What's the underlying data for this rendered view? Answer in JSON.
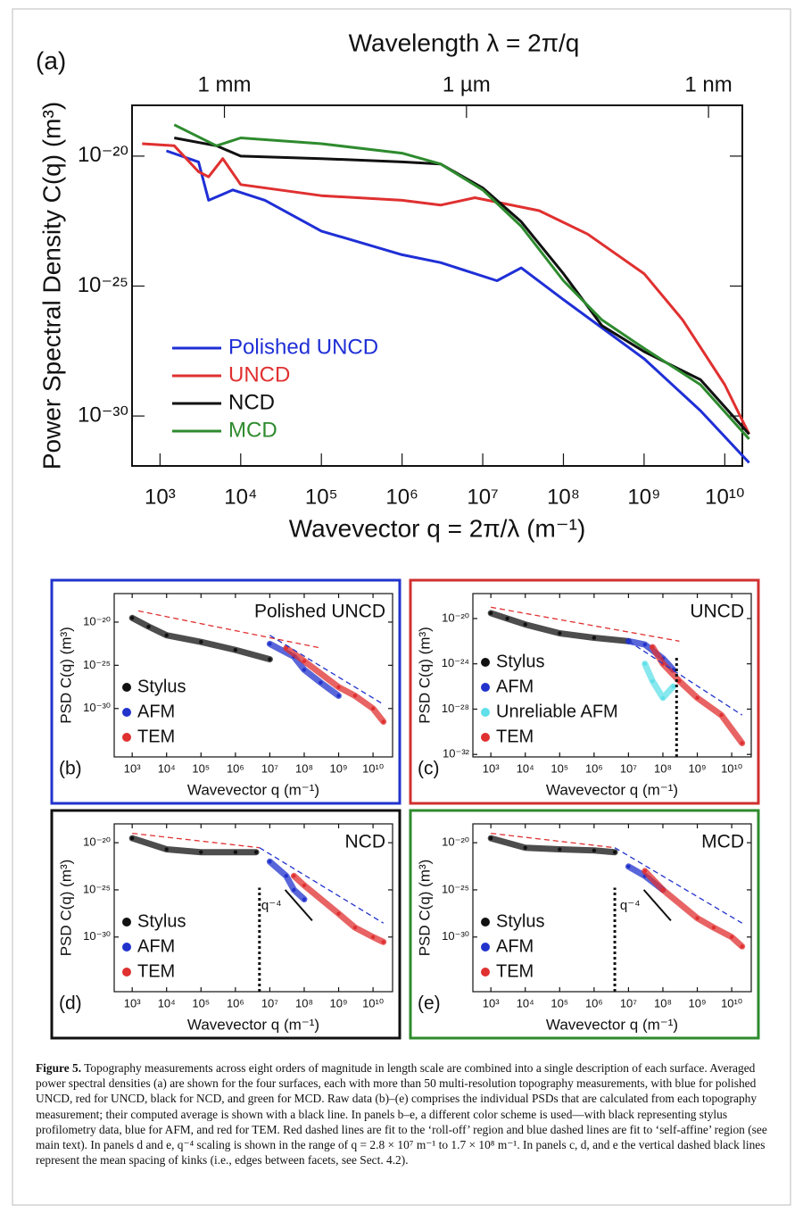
{
  "chart_data": [
    {
      "type": "line",
      "panel_label": "(a)",
      "top_axis_label": "Wavelength λ = 2π/q",
      "top_xticks": [
        {
          "value": 6283,
          "label": "1 mm"
        },
        {
          "value": 6283000,
          "label": "1 µm"
        },
        {
          "value": 6283000000,
          "label": "1 nm"
        }
      ],
      "ylabel": "Power Spectral Density C(q) (m³)",
      "xlabel": "Wavevector q = 2π/λ (m⁻¹)",
      "log_x": true,
      "log_y": true,
      "xlim": [
        450,
        16500000000
      ],
      "ylim": [
        1.2e-32,
        9e-19
      ],
      "xticks": [
        {
          "value": 1000,
          "label": "10³"
        },
        {
          "value": 10000,
          "label": "10⁴"
        },
        {
          "value": 100000,
          "label": "10⁵"
        },
        {
          "value": 1000000,
          "label": "10⁶"
        },
        {
          "value": 10000000,
          "label": "10⁷"
        },
        {
          "value": 100000000,
          "label": "10⁸"
        },
        {
          "value": 1000000000,
          "label": "10⁹"
        },
        {
          "value": 10000000000,
          "label": "10¹⁰"
        }
      ],
      "yticks": [
        {
          "value": 1e-20,
          "label": "10⁻²⁰"
        },
        {
          "value": 1e-25,
          "label": "10⁻²⁵"
        },
        {
          "value": 1e-30,
          "label": "10⁻³⁰"
        }
      ],
      "series": [
        {
          "name": "Polished UNCD",
          "color": "#1f2fd6",
          "x": [
            1200,
            3000,
            4000,
            8000,
            20000,
            100000,
            1000000,
            3000000,
            15000000,
            30000000,
            100000000,
            1000000000,
            5000000000,
            20000000000
          ],
          "values": [
            1.6e-20,
            6e-21,
            2e-22,
            5e-22,
            2e-22,
            1.3e-23,
            1.6e-24,
            8e-25,
            1.6e-25,
            5e-25,
            3e-26,
            1.6e-28,
            1.6e-30,
            1.6e-32
          ]
        },
        {
          "name": "UNCD",
          "color": "#e03030",
          "x": [
            600,
            1500,
            3000,
            4000,
            6000,
            10000,
            100000,
            1000000,
            3000000,
            8000000,
            50000000,
            200000000,
            1000000000,
            3000000000,
            10000000000,
            20000000000
          ],
          "values": [
            3e-20,
            2.5e-20,
            2.5e-21,
            1.6e-21,
            8e-21,
            8e-22,
            3e-22,
            2e-22,
            1.3e-22,
            2.5e-22,
            8e-23,
            1e-23,
            3e-25,
            5e-27,
            1.6e-29,
            2e-31
          ]
        },
        {
          "name": "NCD",
          "color": "#111111",
          "x": [
            1500,
            5000,
            10000,
            100000,
            1000000,
            3000000,
            10000000,
            30000000,
            100000000,
            300000000,
            1000000000,
            5000000000,
            20000000000
          ],
          "values": [
            5e-20,
            2.5e-20,
            1e-20,
            8e-21,
            6e-21,
            5e-21,
            6e-22,
            3e-23,
            3e-25,
            3e-27,
            3e-28,
            2.5e-29,
            2e-31
          ]
        },
        {
          "name": "MCD",
          "color": "#2e8b2e",
          "x": [
            1500,
            5000,
            10000,
            100000,
            1000000,
            3000000,
            10000000,
            30000000,
            100000000,
            300000000,
            1000000000,
            5000000000,
            20000000000
          ],
          "values": [
            1.6e-19,
            2.5e-20,
            5e-20,
            3e-20,
            1.3e-20,
            5e-21,
            5e-22,
            2e-23,
            1.6e-25,
            5e-27,
            4e-28,
            1.6e-29,
            1.3e-31
          ]
        }
      ]
    },
    {
      "type": "scatter",
      "panel_label": "(b)",
      "title": "Polished UNCD",
      "frame_color": "#2233cc",
      "ylabel": "PSD C(q) (m³)",
      "xlabel": "Wavevector q (m⁻¹)",
      "log_x": true,
      "log_y": true,
      "xlim": [
        300,
        37000000000
      ],
      "ylim": [
        2.5e-36,
        2e-17
      ],
      "xticks": [
        {
          "value": 1000,
          "label": "10³"
        },
        {
          "value": 10000,
          "label": "10⁴"
        },
        {
          "value": 100000,
          "label": "10⁵"
        },
        {
          "value": 1000000,
          "label": "10⁶"
        },
        {
          "value": 10000000,
          "label": "10⁷"
        },
        {
          "value": 100000000,
          "label": "10⁸"
        },
        {
          "value": 1000000000,
          "label": "10⁹"
        },
        {
          "value": 10000000000,
          "label": "10¹⁰"
        }
      ],
      "yticks": [
        {
          "value": 1e-20,
          "label": "10⁻²⁰"
        },
        {
          "value": 1e-25,
          "label": "10⁻²⁵"
        },
        {
          "value": 1e-30,
          "label": "10⁻³⁰"
        }
      ],
      "series": [
        {
          "name": "Stylus",
          "color": "#111111",
          "x": [
            1000,
            3000,
            10000,
            100000,
            1000000,
            10000000
          ],
          "values": [
            3e-20,
            3e-21,
            3e-22,
            5e-23,
            6e-24,
            5e-25
          ]
        },
        {
          "name": "AFM",
          "color": "#2233cc",
          "x": [
            10000000,
            50000000,
            100000000,
            300000000,
            1000000000
          ],
          "values": [
            3e-23,
            1e-24,
            3e-26,
            1e-27,
            3e-29
          ]
        },
        {
          "name": "TEM",
          "color": "#e03030",
          "x": [
            30000000,
            100000000,
            1000000000,
            3000000000,
            10000000000,
            20000000000
          ],
          "values": [
            1e-23,
            3e-25,
            3e-28,
            3e-29,
            1e-30,
            3e-32
          ]
        },
        {
          "color": "#e03030",
          "dash": "6,4",
          "x": [
            1500,
            300000000
          ],
          "values": [
            2e-19,
            1e-23
          ]
        },
        {
          "color": "#2233cc",
          "dash": "6,4",
          "x": [
            10000000,
            20000000000
          ],
          "values": [
            3e-22,
            3e-30
          ]
        }
      ]
    },
    {
      "type": "scatter",
      "panel_label": "(c)",
      "title": "UNCD",
      "frame_color": "#d03030",
      "ylabel": "PSD C(q) (m³)",
      "xlabel": "Wavevector q (m⁻¹)",
      "log_x": true,
      "log_y": true,
      "xlim": [
        300,
        37000000000
      ],
      "ylim": [
        6e-33,
        1.6e-18
      ],
      "xticks": [
        {
          "value": 1000,
          "label": "10³"
        },
        {
          "value": 10000,
          "label": "10⁴"
        },
        {
          "value": 100000,
          "label": "10⁵"
        },
        {
          "value": 1000000,
          "label": "10⁶"
        },
        {
          "value": 10000000,
          "label": "10⁷"
        },
        {
          "value": 100000000,
          "label": "10⁸"
        },
        {
          "value": 1000000000,
          "label": "10⁹"
        },
        {
          "value": 10000000000,
          "label": "10¹⁰"
        }
      ],
      "yticks": [
        {
          "value": 1e-20,
          "label": "10⁻²⁰"
        },
        {
          "value": 1e-24,
          "label": "10⁻²⁴"
        },
        {
          "value": 1e-28,
          "label": "10⁻²⁸"
        },
        {
          "value": 1e-32,
          "label": "10⁻³²"
        }
      ],
      "vline": 250000000,
      "series": [
        {
          "name": "Stylus",
          "color": "#111111",
          "x": [
            1000,
            3000,
            10000,
            100000,
            1000000,
            10000000
          ],
          "values": [
            3e-20,
            1e-20,
            3e-21,
            5e-22,
            2e-22,
            1e-22
          ]
        },
        {
          "name": "AFM",
          "color": "#2233cc",
          "x": [
            10000000,
            30000000,
            100000000,
            200000000
          ],
          "values": [
            1e-22,
            5e-23,
            3e-24,
            3e-25
          ]
        },
        {
          "name": "Unreliable AFM",
          "color": "#5fe0e8",
          "x": [
            30000000,
            50000000,
            100000000,
            200000000
          ],
          "values": [
            1e-24,
            3e-26,
            1e-27,
            1e-26
          ]
        },
        {
          "name": "TEM",
          "color": "#e03030",
          "x": [
            50000000,
            100000000,
            300000000,
            1000000000,
            5000000000,
            20000000000
          ],
          "values": [
            3e-23,
            1e-24,
            3e-26,
            1e-27,
            3e-29,
            1e-31
          ]
        },
        {
          "color": "#e03030",
          "dash": "6,4",
          "x": [
            1000,
            300000000
          ],
          "values": [
            1e-19,
            1e-22
          ]
        },
        {
          "color": "#2233cc",
          "dash": "6,4",
          "x": [
            10000000,
            20000000000
          ],
          "values": [
            1e-22,
            3e-29
          ]
        }
      ]
    },
    {
      "type": "scatter",
      "panel_label": "(d)",
      "title": "NCD",
      "frame_color": "#111111",
      "ylabel": "PSD C(q) (m³)",
      "xlabel": "Wavevector q (m⁻¹)",
      "log_x": true,
      "log_y": true,
      "xlim": [
        300,
        37000000000
      ],
      "ylim": [
        1.6e-36,
        1e-18
      ],
      "xticks": [
        {
          "value": 1000,
          "label": "10³"
        },
        {
          "value": 10000,
          "label": "10⁴"
        },
        {
          "value": 100000,
          "label": "10⁵"
        },
        {
          "value": 1000000,
          "label": "10⁶"
        },
        {
          "value": 10000000,
          "label": "10⁷"
        },
        {
          "value": 100000000,
          "label": "10⁸"
        },
        {
          "value": 1000000000,
          "label": "10⁹"
        },
        {
          "value": 10000000000,
          "label": "10¹⁰"
        }
      ],
      "yticks": [
        {
          "value": 1e-20,
          "label": "10⁻²⁰"
        },
        {
          "value": 1e-25,
          "label": "10⁻²⁵"
        },
        {
          "value": 1e-30,
          "label": "10⁻³⁰"
        }
      ],
      "vline": 5000000,
      "slope_label": "q⁻⁴",
      "series": [
        {
          "name": "Stylus",
          "color": "#111111",
          "x": [
            1000,
            10000,
            100000,
            1000000,
            4000000
          ],
          "values": [
            3e-20,
            2e-21,
            1e-21,
            1e-21,
            1e-21
          ]
        },
        {
          "name": "AFM",
          "color": "#2233cc",
          "x": [
            10000000,
            30000000,
            50000000,
            100000000
          ],
          "values": [
            1e-22,
            3e-24,
            1e-25,
            1e-26
          ]
        },
        {
          "name": "TEM",
          "color": "#e03030",
          "x": [
            50000000,
            100000000,
            1000000000,
            3000000000,
            10000000000,
            20000000000
          ],
          "values": [
            3e-24,
            3e-25,
            3e-28,
            1e-29,
            1e-30,
            3e-31
          ]
        },
        {
          "color": "#e03030",
          "dash": "6,4",
          "x": [
            1000,
            5000000
          ],
          "values": [
            1e-19,
            3e-21
          ]
        },
        {
          "color": "#2233cc",
          "dash": "6,4",
          "x": [
            5000000,
            20000000000
          ],
          "values": [
            3e-21,
            3e-29
          ]
        },
        {
          "color": "#111111",
          "slope": true,
          "x": [
            28000000,
            170000000
          ],
          "values": [
            1e-25,
            5.5e-29
          ]
        }
      ]
    },
    {
      "type": "scatter",
      "panel_label": "(e)",
      "title": "MCD",
      "frame_color": "#2e8b2e",
      "ylabel": "PSD C(q) (m³)",
      "xlabel": "Wavevector q (m⁻¹)",
      "log_x": true,
      "log_y": true,
      "xlim": [
        300,
        37000000000
      ],
      "ylim": [
        1.6e-36,
        1e-18
      ],
      "xticks": [
        {
          "value": 1000,
          "label": "10³"
        },
        {
          "value": 10000,
          "label": "10⁴"
        },
        {
          "value": 100000,
          "label": "10⁵"
        },
        {
          "value": 1000000,
          "label": "10⁶"
        },
        {
          "value": 10000000,
          "label": "10⁷"
        },
        {
          "value": 100000000,
          "label": "10⁸"
        },
        {
          "value": 1000000000,
          "label": "10⁹"
        },
        {
          "value": 10000000000,
          "label": "10¹⁰"
        }
      ],
      "yticks": [
        {
          "value": 1e-20,
          "label": "10⁻²⁰"
        },
        {
          "value": 1e-25,
          "label": "10⁻²⁵"
        },
        {
          "value": 1e-30,
          "label": "10⁻³⁰"
        }
      ],
      "vline": 4000000,
      "slope_label": "q⁻⁴",
      "series": [
        {
          "name": "Stylus",
          "color": "#111111",
          "x": [
            1000,
            10000,
            100000,
            1000000,
            4000000
          ],
          "values": [
            3e-20,
            3e-21,
            2e-21,
            1.5e-21,
            1e-21
          ]
        },
        {
          "name": "AFM",
          "color": "#2233cc",
          "x": [
            10000000,
            30000000,
            100000000
          ],
          "values": [
            3e-23,
            3e-24,
            1e-25
          ]
        },
        {
          "name": "TEM",
          "color": "#e03030",
          "x": [
            30000000,
            100000000,
            1000000000,
            3000000000,
            10000000000,
            20000000000
          ],
          "values": [
            1e-23,
            1e-25,
            1e-28,
            1e-29,
            1e-30,
            1e-31
          ]
        },
        {
          "color": "#e03030",
          "dash": "6,4",
          "x": [
            1000,
            4000000
          ],
          "values": [
            1e-19,
            3e-21
          ]
        },
        {
          "color": "#2233cc",
          "dash": "6,4",
          "x": [
            4000000,
            20000000000
          ],
          "values": [
            3e-21,
            3e-29
          ]
        },
        {
          "color": "#111111",
          "slope": true,
          "x": [
            28000000,
            170000000
          ],
          "values": [
            1e-25,
            5.5e-29
          ]
        }
      ]
    }
  ],
  "caption": {
    "label": "Figure 5.",
    "text": "Topography measurements across eight orders of magnitude in length scale are combined into a single description of each surface. Averaged power spectral densities (a) are shown for the four surfaces, each with more than 50 multi-resolution topography measurements, with blue for polished UNCD, red for UNCD, black for NCD, and green for MCD. Raw data (b)–(e) comprises the individual PSDs that are calculated from each topography measurement; their computed average is shown with a black line. In panels b–e, a different color scheme is used—with black representing stylus profilometry data, blue for AFM, and red for TEM. Red dashed lines are fit to the ‘roll-off’ region and blue dashed lines are fit to ‘self-affine’ region (see main text). In panels d and e, q⁻⁴ scaling is shown in the range of q = 2.8 × 10⁷ m⁻¹ to 1.7 × 10⁸ m⁻¹. In panels c, d, and e the vertical dashed black lines represent the mean spacing of kinks (i.e., edges between facets, see Sect. 4.2)."
  }
}
